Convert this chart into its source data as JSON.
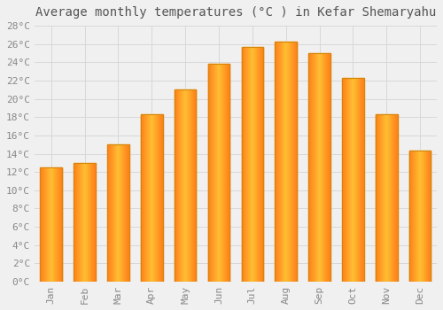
{
  "title": "Average monthly temperatures (°C ) in Kefar Shemaryahu",
  "months": [
    "Jan",
    "Feb",
    "Mar",
    "Apr",
    "May",
    "Jun",
    "Jul",
    "Aug",
    "Sep",
    "Oct",
    "Nov",
    "Dec"
  ],
  "values": [
    12.5,
    13.0,
    15.0,
    18.3,
    21.0,
    23.8,
    25.7,
    26.3,
    25.0,
    22.3,
    18.3,
    14.3
  ],
  "bar_color_center": "#FFD04A",
  "bar_color_edge": "#F5A800",
  "bar_outline_color": "#D4860A",
  "ylim": [
    0,
    28
  ],
  "ytick_max": 28,
  "ytick_step": 2,
  "background_color": "#f0f0f0",
  "grid_color": "#d8d8d8",
  "title_fontsize": 10,
  "tick_fontsize": 8,
  "bar_width": 0.65
}
